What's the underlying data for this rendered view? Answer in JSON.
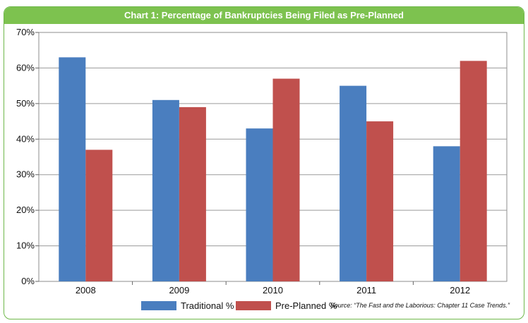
{
  "chart_data": {
    "type": "bar",
    "title": "Chart 1: Percentage of Bankruptcies Being Filed as Pre-Planned",
    "categories": [
      "2008",
      "2009",
      "2010",
      "2011",
      "2012"
    ],
    "series": [
      {
        "name": "Traditional %",
        "values": [
          63,
          51,
          43,
          55,
          38
        ],
        "color": "#4a7ebf"
      },
      {
        "name": "Pre-Planned %",
        "values": [
          37,
          49,
          57,
          45,
          62
        ],
        "color": "#c0504d"
      }
    ],
    "ylim": [
      0,
      70
    ],
    "yticks": [
      0,
      10,
      20,
      30,
      40,
      50,
      60,
      70
    ],
    "ytick_labels": [
      "0%",
      "10%",
      "20%",
      "30%",
      "40%",
      "50%",
      "60%",
      "70%"
    ],
    "xlabel": "",
    "ylabel": "",
    "grid": true,
    "legend_position": "bottom-left",
    "source": "Source: “The Fast and the Laborious: Chapter 11 Case Trends.”"
  },
  "colors": {
    "banner": "#7dc24f",
    "border": "#6fb84a",
    "grid": "#9a9a9a"
  }
}
